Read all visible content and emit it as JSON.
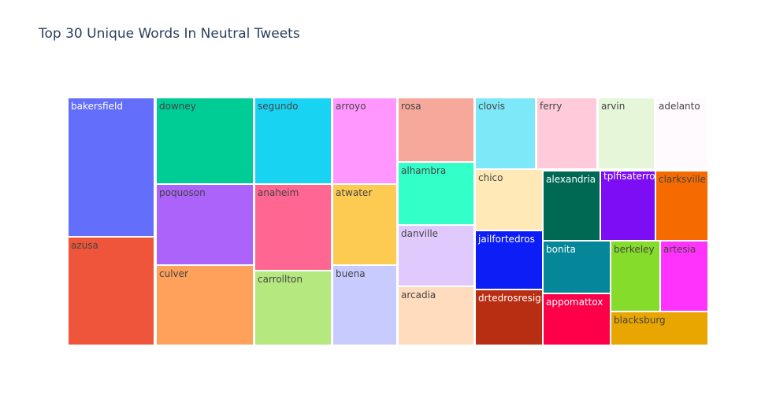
{
  "title": "Top 30 Unique Words In Neutral Tweets",
  "chart_data": {
    "type": "treemap",
    "title": "Top 30 Unique Words In Neutral Tweets",
    "items": [
      {
        "label": "bakersfield",
        "value": 19,
        "color": "#636efa",
        "text_color": "#ffffff"
      },
      {
        "label": "azusa",
        "value": 13,
        "color": "#ef553b",
        "text_color": "#444444"
      },
      {
        "label": "downey",
        "value": 12,
        "color": "#00cc96",
        "text_color": "#444444"
      },
      {
        "label": "poquoson",
        "value": 11,
        "color": "#ab63fa",
        "text_color": "#444444"
      },
      {
        "label": "culver",
        "value": 11,
        "color": "#ffa15a",
        "text_color": "#444444"
      },
      {
        "label": "segundo",
        "value": 10,
        "color": "#19d3f3",
        "text_color": "#444444"
      },
      {
        "label": "anaheim",
        "value": 10,
        "color": "#ff6692",
        "text_color": "#444444"
      },
      {
        "label": "carrollton",
        "value": 8.5,
        "color": "#b6e880",
        "text_color": "#444444"
      },
      {
        "label": "arroyo",
        "value": 7.5,
        "color": "#ff97ff",
        "text_color": "#444444"
      },
      {
        "label": "atwater",
        "value": 7,
        "color": "#fecb52",
        "text_color": "#444444"
      },
      {
        "label": "buena",
        "value": 7,
        "color": "#c8cbfe",
        "text_color": "#444444"
      },
      {
        "label": "rosa",
        "value": 6.5,
        "color": "#f6a89b",
        "text_color": "#444444"
      },
      {
        "label": "alhambra",
        "value": 6,
        "color": "#33ffc9",
        "text_color": "#444444"
      },
      {
        "label": "danville",
        "value": 6,
        "color": "#e0c9fc",
        "text_color": "#444444"
      },
      {
        "label": "arcadia",
        "value": 6,
        "color": "#fedcbd",
        "text_color": "#444444"
      },
      {
        "label": "clovis",
        "value": 5.5,
        "color": "#7ce8f8",
        "text_color": "#444444"
      },
      {
        "label": "chico",
        "value": 5.5,
        "color": "#ffe9b6",
        "text_color": "#444444"
      },
      {
        "label": "jailfortedros",
        "value": 5.5,
        "color": "#0d1df5",
        "text_color": "#ffffff"
      },
      {
        "label": "drtedrosresign",
        "value": 5.5,
        "color": "#b82e12",
        "text_color": "#ffffff"
      },
      {
        "label": "ferry",
        "value": 5,
        "color": "#ffcbdb",
        "text_color": "#444444"
      },
      {
        "label": "alexandria",
        "value": 4.5,
        "color": "#006953",
        "text_color": "#ffffff"
      },
      {
        "label": "bonita",
        "value": 4.5,
        "color": "#058799",
        "text_color": "#ffffff"
      },
      {
        "label": "appomattox",
        "value": 4.5,
        "color": "#fe0049",
        "text_color": "#ffffff"
      },
      {
        "label": "arvin",
        "value": 4.5,
        "color": "#e5f7d8",
        "text_color": "#444444"
      },
      {
        "label": "tplfisaterroristgroup",
        "value": 4,
        "color": "#7d0df5",
        "text_color": "#ffffff"
      },
      {
        "label": "berkeley",
        "value": 4,
        "color": "#85dc2b",
        "text_color": "#444444"
      },
      {
        "label": "blacksburg",
        "value": 4,
        "color": "#e9a500",
        "text_color": "#444444"
      },
      {
        "label": "adelanto",
        "value": 4,
        "color": "#fffafe",
        "text_color": "#444444"
      },
      {
        "label": "clarksville",
        "value": 4,
        "color": "#f56b00",
        "text_color": "#444444"
      },
      {
        "label": "artesia",
        "value": 3,
        "color": "#ff33fb",
        "text_color": "#444444"
      }
    ]
  }
}
